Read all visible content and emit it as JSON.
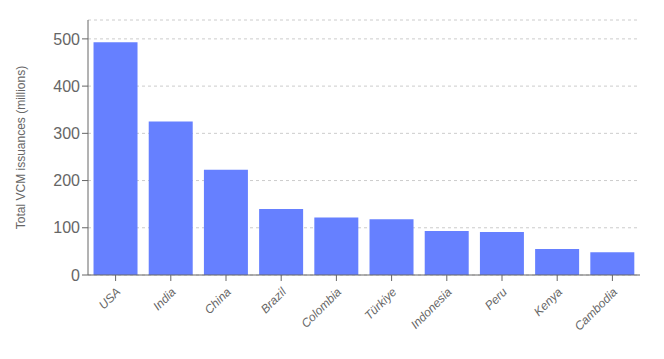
{
  "chart_data": {
    "type": "bar",
    "categories": [
      "USA",
      "India",
      "China",
      "Brazil",
      "Colombia",
      "Türkiye",
      "Indonesia",
      "Peru",
      "Kenya",
      "Cambodia"
    ],
    "values": [
      493,
      325,
      223,
      140,
      122,
      118,
      93,
      91,
      55,
      48
    ],
    "color": "#6680ff",
    "ylabel": "Total VCM issuances (millions)",
    "ylim": [
      0,
      540
    ],
    "yticks": [
      0,
      100,
      200,
      300,
      400,
      500
    ],
    "grid": true
  }
}
